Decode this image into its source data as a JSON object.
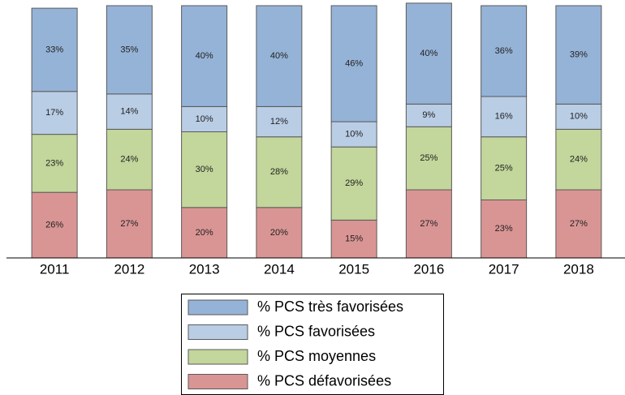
{
  "chart_data": {
    "type": "bar",
    "stacked": true,
    "categories": [
      "2011",
      "2012",
      "2013",
      "2014",
      "2015",
      "2016",
      "2017",
      "2018"
    ],
    "ylim": [
      0,
      100
    ],
    "series": [
      {
        "name": "% PCS défavorisées",
        "color": "#d99594",
        "values": [
          26,
          27,
          20,
          20,
          15,
          27,
          23,
          27
        ],
        "value_labels": [
          "26%",
          "27%",
          "20%",
          "20%",
          "15%",
          "27%",
          "23%",
          "27%"
        ]
      },
      {
        "name": "% PCS moyennes",
        "color": "#c3d69b",
        "values": [
          23,
          24,
          30,
          28,
          29,
          25,
          25,
          24
        ],
        "value_labels": [
          "23%",
          "24%",
          "30%",
          "28%",
          "29%",
          "25%",
          "25%",
          "24%"
        ]
      },
      {
        "name": "% PCS favorisées",
        "color": "#b9cde5",
        "values": [
          17,
          14,
          10,
          12,
          10,
          9,
          16,
          10
        ],
        "value_labels": [
          "17%",
          "14%",
          "10%",
          "12%",
          "10%",
          "9%",
          "16%",
          "10%"
        ]
      },
      {
        "name": "% PCS très favorisées",
        "color": "#95b3d7",
        "values": [
          33,
          35,
          40,
          40,
          46,
          40,
          36,
          39
        ],
        "value_labels": [
          "33%",
          "35%",
          "40%",
          "40%",
          "46%",
          "40%",
          "36%",
          "39%"
        ]
      }
    ]
  }
}
